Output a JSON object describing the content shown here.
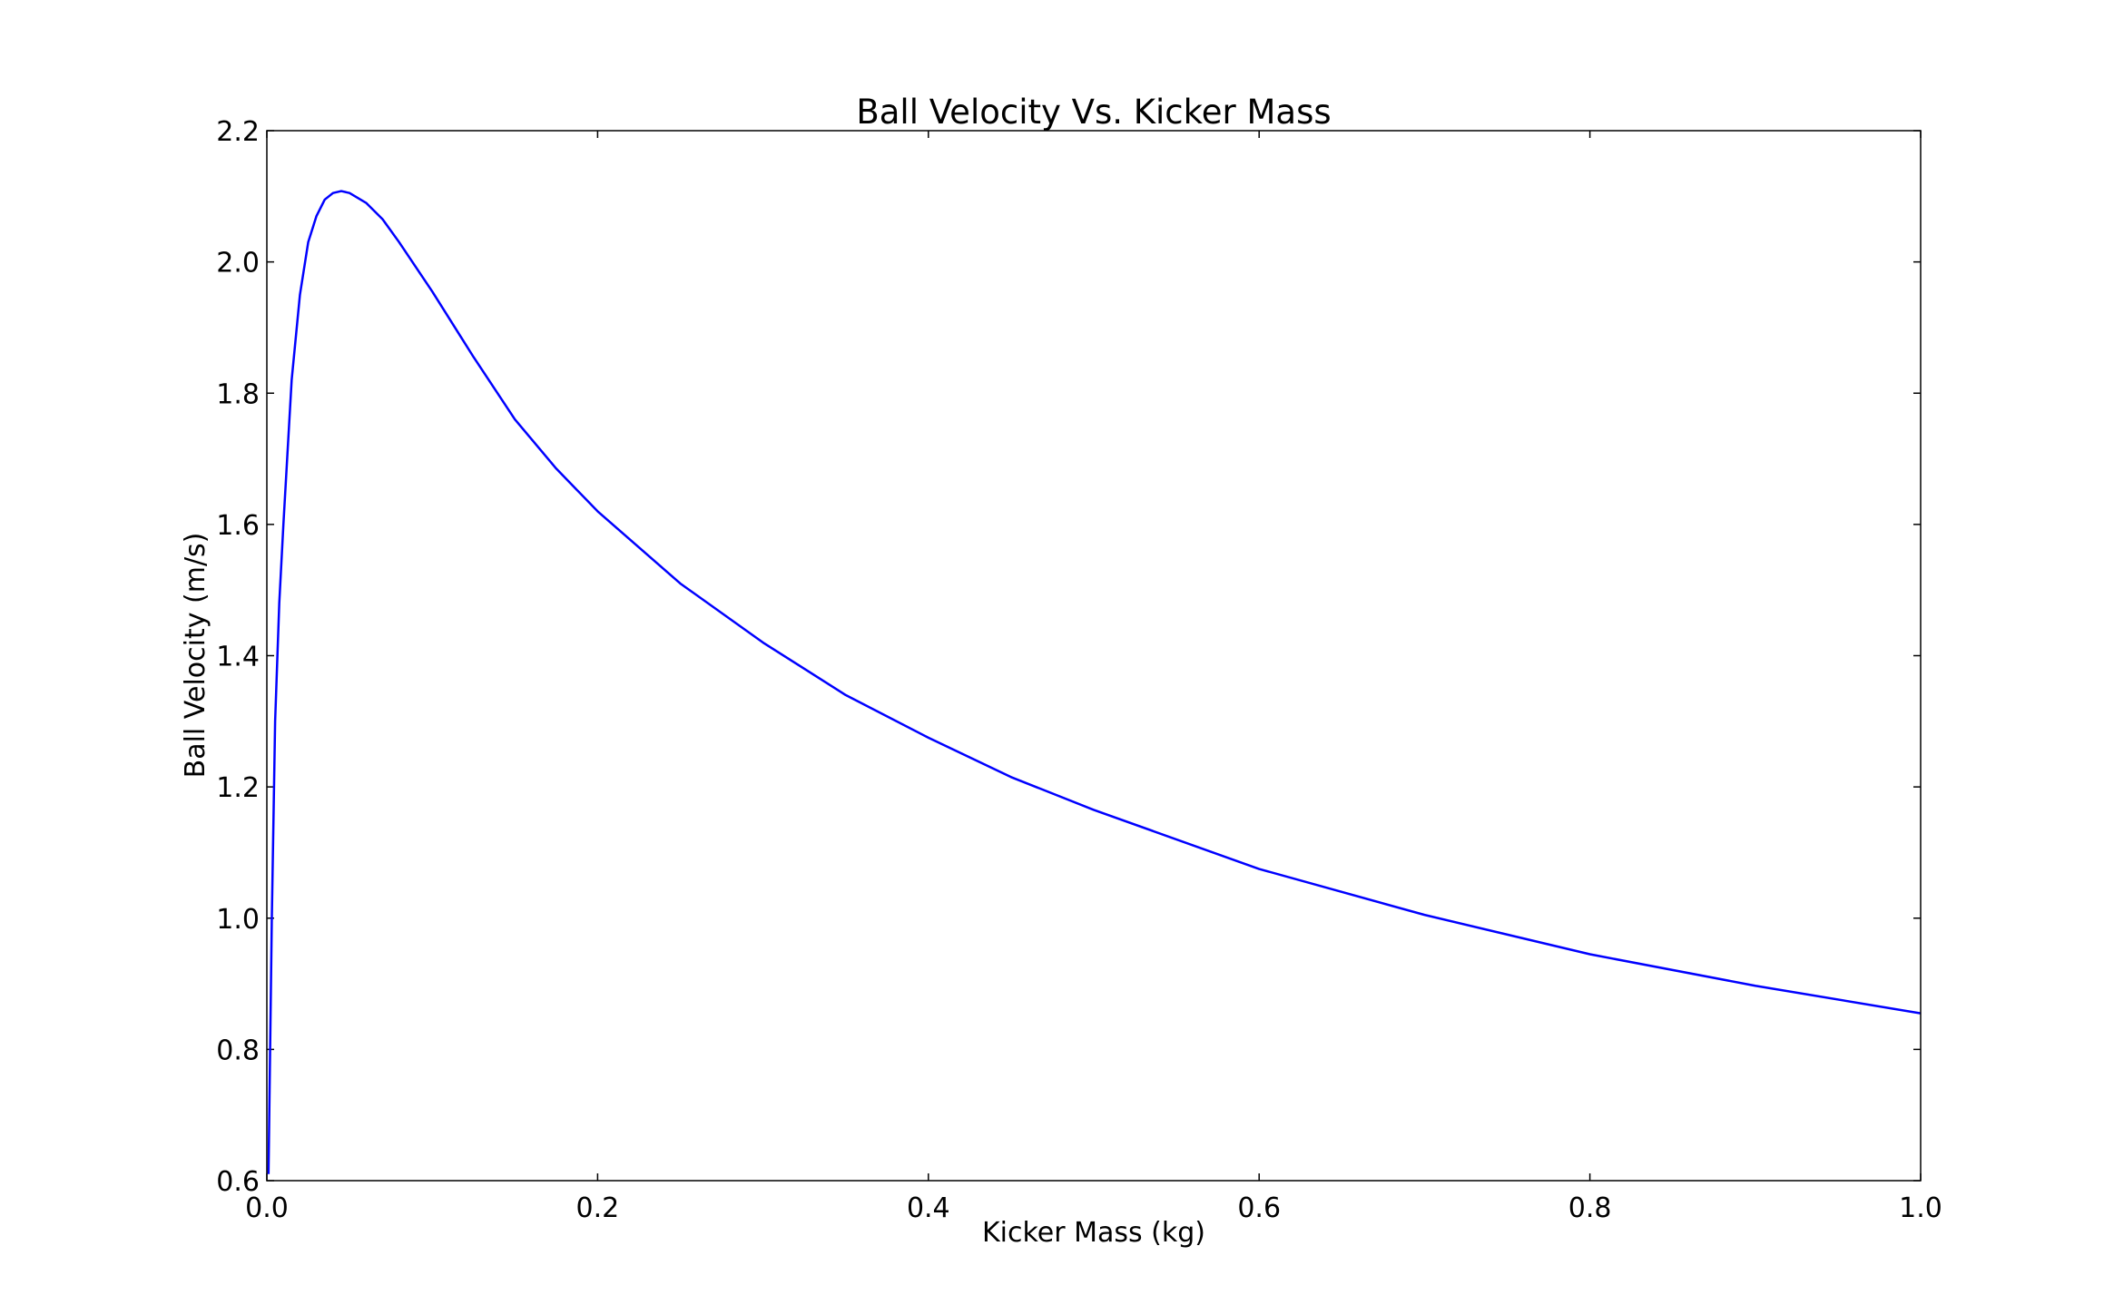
{
  "chart_data": {
    "type": "line",
    "title": "Ball Velocity Vs. Kicker Mass",
    "xlabel": "Kicker Mass (kg)",
    "ylabel": "Ball Velocity (m/s)",
    "x": [
      0.001,
      0.003,
      0.005,
      0.0075,
      0.01,
      0.015,
      0.02,
      0.025,
      0.03,
      0.035,
      0.04,
      0.045,
      0.05,
      0.06,
      0.07,
      0.08,
      0.1,
      0.125,
      0.15,
      0.175,
      0.2,
      0.25,
      0.3,
      0.35,
      0.4,
      0.45,
      0.5,
      0.6,
      0.7,
      0.8,
      0.9,
      1.0
    ],
    "series": [
      {
        "name": "Ball Velocity",
        "color": "#0000ff",
        "values": [
          0.61,
          1.0,
          1.3,
          1.48,
          1.6,
          1.82,
          1.95,
          2.03,
          2.07,
          2.095,
          2.105,
          2.108,
          2.105,
          2.09,
          2.065,
          2.03,
          1.955,
          1.855,
          1.76,
          1.685,
          1.62,
          1.51,
          1.42,
          1.34,
          1.275,
          1.215,
          1.165,
          1.075,
          1.005,
          0.945,
          0.897,
          0.855
        ]
      }
    ],
    "xlim": [
      0.0,
      1.0
    ],
    "ylim": [
      0.6,
      2.2
    ],
    "xticks": [
      {
        "value": 0,
        "label": "0.0"
      },
      0.2,
      0.4,
      0.6,
      0.8,
      {
        "value": 1,
        "label": "1.0"
      }
    ],
    "yticks": [
      0.6,
      0.8,
      {
        "value": 1,
        "label": "1.0"
      },
      1.2,
      1.4,
      1.6,
      1.8,
      {
        "value": 2,
        "label": "2.0"
      },
      2.2
    ],
    "grid": false
  }
}
